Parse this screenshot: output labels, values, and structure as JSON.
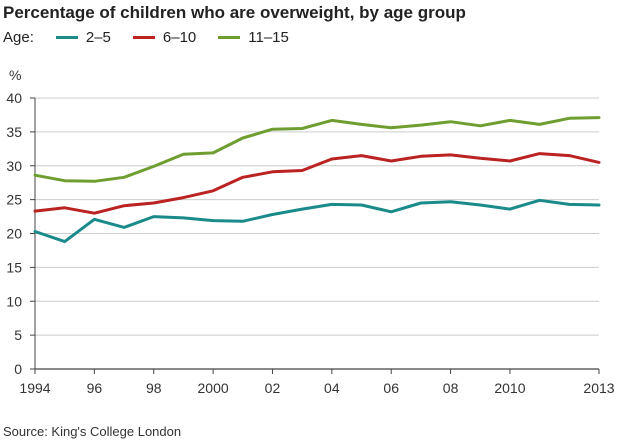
{
  "chart_data": {
    "type": "line",
    "title": "Percentage of children who are overweight, by age group",
    "legend_label": "Age:",
    "ylabel": "%",
    "xlabel": "",
    "ylim": [
      0,
      40
    ],
    "yticks": [
      0,
      5,
      10,
      15,
      20,
      25,
      30,
      35,
      40
    ],
    "xlim": [
      1994,
      2013
    ],
    "xticks": [
      {
        "value": 1994,
        "label": "1994"
      },
      {
        "value": 1996,
        "label": "96"
      },
      {
        "value": 1998,
        "label": "98"
      },
      {
        "value": 2000,
        "label": "2000"
      },
      {
        "value": 2002,
        "label": "02"
      },
      {
        "value": 2004,
        "label": "04"
      },
      {
        "value": 2006,
        "label": "06"
      },
      {
        "value": 2008,
        "label": "08"
      },
      {
        "value": 2010,
        "label": "2010"
      },
      {
        "value": 2013,
        "label": "2013"
      }
    ],
    "grid": "horizontal",
    "legend_position": "top-left",
    "x": [
      1994,
      1995,
      1996,
      1997,
      1998,
      1999,
      2000,
      2001,
      2002,
      2003,
      2004,
      2005,
      2006,
      2007,
      2008,
      2009,
      2010,
      2011,
      2012,
      2013
    ],
    "series": [
      {
        "name": "2–5",
        "color": "#1a8a8a",
        "values": [
          20.3,
          18.8,
          22.1,
          20.9,
          22.5,
          22.3,
          21.9,
          21.8,
          22.8,
          23.6,
          24.3,
          24.2,
          23.2,
          24.5,
          24.7,
          24.2,
          23.6,
          24.9,
          24.3,
          24.2
        ]
      },
      {
        "name": "6–10",
        "color": "#bb2222",
        "values": [
          23.3,
          23.8,
          23.0,
          24.1,
          24.5,
          25.3,
          26.3,
          28.3,
          29.1,
          29.3,
          31.0,
          31.5,
          30.7,
          31.4,
          31.6,
          31.1,
          30.7,
          31.8,
          31.5,
          30.5
        ]
      },
      {
        "name": "11–15",
        "color": "#6f9e30",
        "values": [
          28.6,
          27.8,
          27.7,
          28.3,
          29.9,
          31.7,
          31.9,
          34.1,
          35.4,
          35.5,
          36.7,
          36.1,
          35.6,
          36.0,
          36.5,
          35.9,
          36.7,
          36.1,
          37.0,
          37.1
        ]
      }
    ],
    "source": "Source: King's College London"
  }
}
